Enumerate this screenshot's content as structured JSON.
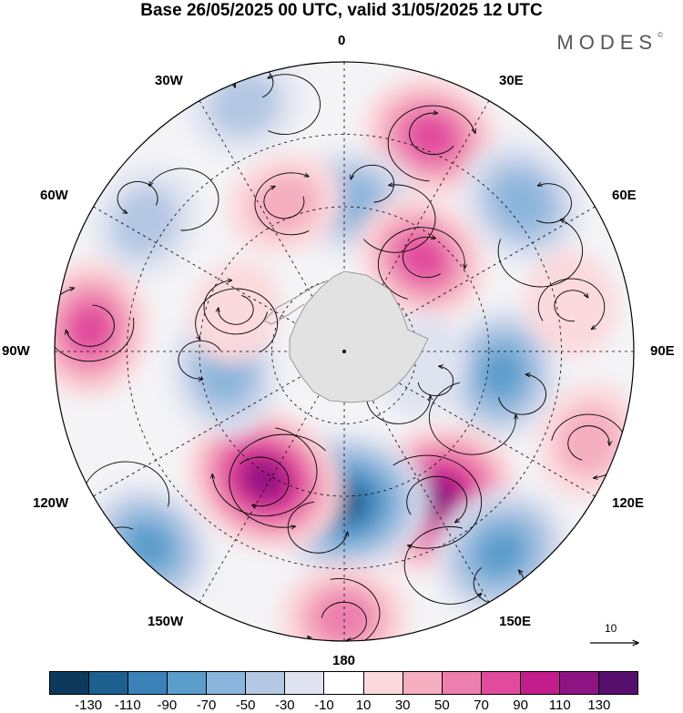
{
  "title": "Base 26/05/2025 00 UTC, valid 31/05/2025 12 UTC",
  "brand": "MODES",
  "brand_mark": "©",
  "longitude_labels": {
    "lon_0": "0",
    "lon_30e": "30E",
    "lon_60e": "60E",
    "lon_90e": "90E",
    "lon_120e": "120E",
    "lon_150e": "150E",
    "lon_180": "180",
    "lon_150w": "150W",
    "lon_120w": "120W",
    "lon_90w": "90W",
    "lon_60w": "60W",
    "lon_30w": "30W"
  },
  "vector_scale_label": "10",
  "colorbar": {
    "colors": [
      "#0d3a5c",
      "#1d5f8f",
      "#3a82b8",
      "#5b9dcb",
      "#8bb5dc",
      "#b4c7e3",
      "#dfe3f0",
      "#ffffff",
      "#fbd9dc",
      "#f5afc0",
      "#ed7fae",
      "#e14a9d",
      "#c21d8a",
      "#8d1482",
      "#57106e"
    ],
    "tick_labels": [
      "-130",
      "-110",
      "-90",
      "-70",
      "-50",
      "-30",
      "-10",
      "10",
      "30",
      "50",
      "70",
      "90",
      "110",
      "130"
    ]
  },
  "anomalies": [
    {
      "lon": 22,
      "colat": 0.8,
      "value": 75
    },
    {
      "lon": 3,
      "colat": 0.52,
      "value": -55
    },
    {
      "lon": -22,
      "colat": 0.55,
      "value": 40
    },
    {
      "lon": -22,
      "colat": 0.92,
      "value": -35
    },
    {
      "lon": -57,
      "colat": 0.82,
      "value": -40
    },
    {
      "lon": 50,
      "colat": 0.8,
      "value": -65
    },
    {
      "lon": 40,
      "colat": 0.42,
      "value": 70
    },
    {
      "lon": 98,
      "colat": 0.55,
      "value": -70
    },
    {
      "lon": 100,
      "colat": 0.27,
      "value": -20
    },
    {
      "lon": 110,
      "colat": 0.9,
      "value": 45
    },
    {
      "lon": 148,
      "colat": 0.6,
      "value": 120
    },
    {
      "lon": 142,
      "colat": 0.88,
      "value": -80
    },
    {
      "lon": 180,
      "colat": 0.52,
      "value": -120
    },
    {
      "lon": 180,
      "colat": 0.92,
      "value": 60
    },
    {
      "lon": -148,
      "colat": 0.52,
      "value": 110
    },
    {
      "lon": -135,
      "colat": 0.95,
      "value": -70
    },
    {
      "lon": -100,
      "colat": 0.42,
      "value": -60
    },
    {
      "lon": -85,
      "colat": 0.88,
      "value": 75
    },
    {
      "lon": 78,
      "colat": 0.8,
      "value": 25
    },
    {
      "lon": -70,
      "colat": 0.4,
      "value": 20
    }
  ]
}
